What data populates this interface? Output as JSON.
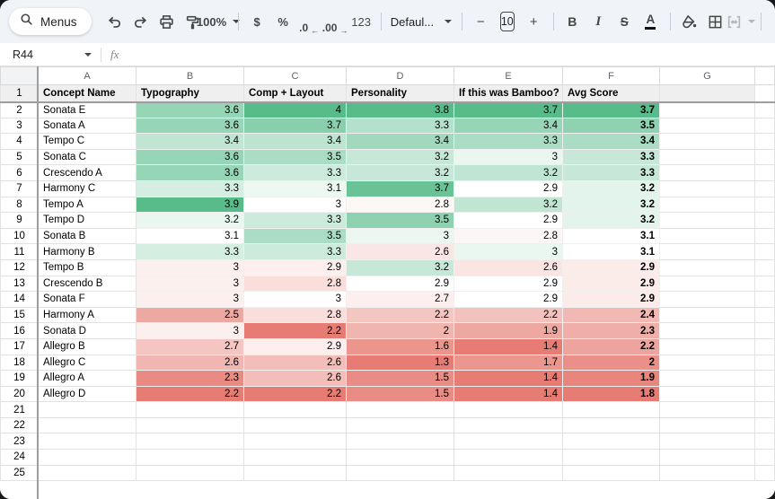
{
  "toolbar": {
    "menus_label": "Menus",
    "zoom_level": "100%",
    "dollar": "$",
    "percent": "%",
    "dec_dec": ".0",
    "dec_dec_arrow": "←",
    "dec_inc": ".00",
    "dec_inc_arrow": "→",
    "num_fmt": "123",
    "font_name": "Defaul...",
    "minus": "−",
    "font_size": "10",
    "plus": "+",
    "bold": "B",
    "italic": "I",
    "strike": "S",
    "text_color": "A"
  },
  "formula_bar": {
    "name_box": "R44",
    "fx_label": "fx"
  },
  "icons": {
    "search": "magnifier",
    "undo": "curved-arrow-left",
    "redo": "curved-arrow-right",
    "print": "printer",
    "paint_format": "paint-roller",
    "fill_color": "paint-bucket",
    "borders": "grid-3x3",
    "merge_cells": "merge-arrows"
  },
  "colors": {
    "scale_min_red": "#E67C73",
    "scale_mid_white": "#FFFFFF",
    "scale_max_green": "#57BB8A",
    "header_row_bg": "#EFEFEF",
    "toolbar_bg": "#F0F4F9"
  },
  "sheet": {
    "column_letters": [
      "A",
      "B",
      "C",
      "D",
      "E",
      "F",
      "G"
    ],
    "headers": [
      "Concept Name",
      "Typography",
      "Comp + Layout",
      "Personality",
      "If this was Bamboo?",
      "Avg Score"
    ],
    "first_data_row_number": 2,
    "rows": [
      {
        "concept": "Sonata E",
        "scores": [
          3.6,
          4,
          3.8,
          3.7,
          3.7
        ]
      },
      {
        "concept": "Sonata A",
        "scores": [
          3.6,
          3.7,
          3.3,
          3.4,
          3.5
        ]
      },
      {
        "concept": "Tempo C",
        "scores": [
          3.4,
          3.4,
          3.4,
          3.3,
          3.4
        ]
      },
      {
        "concept": "Sonata C",
        "scores": [
          3.6,
          3.5,
          3.2,
          3,
          3.3
        ]
      },
      {
        "concept": "Crescendo A",
        "scores": [
          3.6,
          3.3,
          3.2,
          3.2,
          3.3
        ]
      },
      {
        "concept": "Harmony C",
        "scores": [
          3.3,
          3.1,
          3.7,
          2.9,
          3.2
        ]
      },
      {
        "concept": "Tempo A",
        "scores": [
          3.9,
          3,
          2.8,
          3.2,
          3.2
        ]
      },
      {
        "concept": "Tempo D",
        "scores": [
          3.2,
          3.3,
          3.5,
          2.9,
          3.2
        ]
      },
      {
        "concept": "Sonata B",
        "scores": [
          3.1,
          3.5,
          3,
          2.8,
          3.1
        ]
      },
      {
        "concept": "Harmony B",
        "scores": [
          3.3,
          3.3,
          2.6,
          3,
          3.1
        ]
      },
      {
        "concept": "Tempo B",
        "scores": [
          3,
          2.9,
          3.2,
          2.6,
          2.9
        ]
      },
      {
        "concept": "Crescendo B",
        "scores": [
          3,
          2.8,
          2.9,
          2.9,
          2.9
        ]
      },
      {
        "concept": "Sonata F",
        "scores": [
          3,
          3,
          2.7,
          2.9,
          2.9
        ]
      },
      {
        "concept": "Harmony A",
        "scores": [
          2.5,
          2.8,
          2.2,
          2.2,
          2.4
        ]
      },
      {
        "concept": "Sonata D",
        "scores": [
          3,
          2.2,
          2,
          1.9,
          2.3
        ]
      },
      {
        "concept": "Allegro B",
        "scores": [
          2.7,
          2.9,
          1.6,
          1.4,
          2.2
        ]
      },
      {
        "concept": "Allegro C",
        "scores": [
          2.6,
          2.6,
          1.3,
          1.7,
          2
        ]
      },
      {
        "concept": "Allegro A",
        "scores": [
          2.3,
          2.6,
          1.5,
          1.4,
          1.9
        ]
      },
      {
        "concept": "Allegro D",
        "scores": [
          2.2,
          2.2,
          1.5,
          1.4,
          1.8
        ]
      }
    ],
    "trailing_empty_row_numbers": [
      21,
      22,
      23,
      24,
      25
    ]
  }
}
